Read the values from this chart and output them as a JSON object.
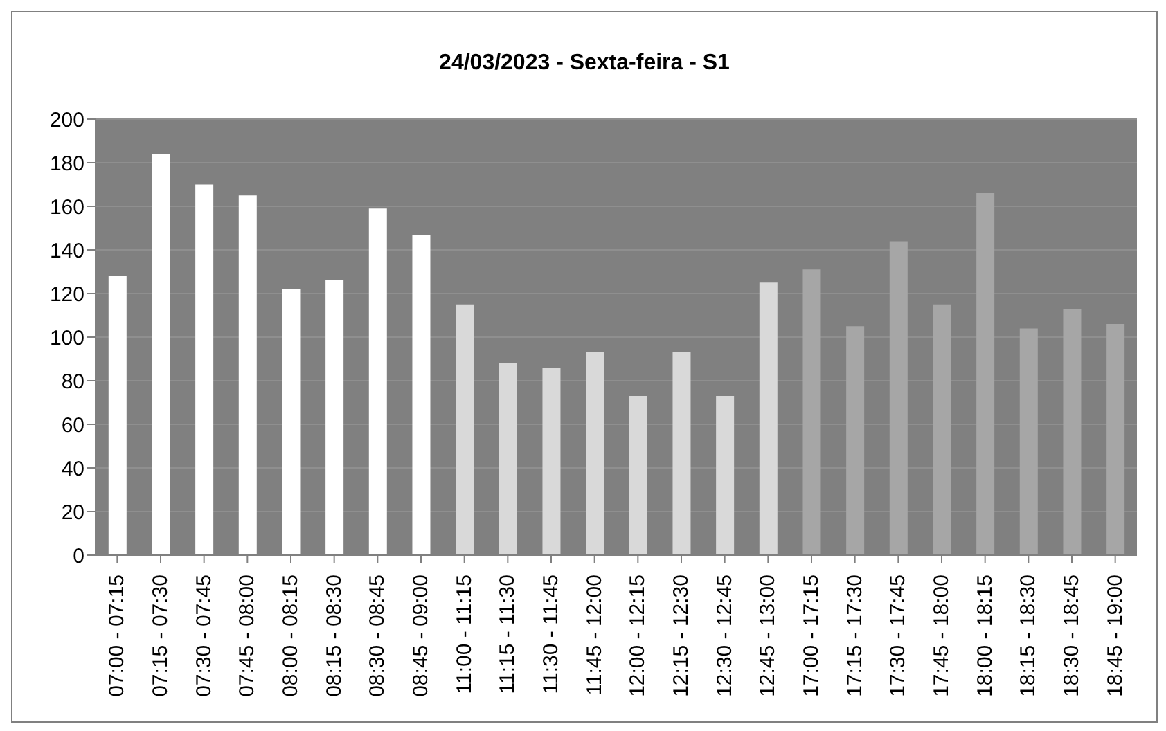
{
  "chart_data": {
    "type": "bar",
    "title": "24/03/2023 - Sexta-feira - S1",
    "categories": [
      "07:00 - 07:15",
      "07:15 - 07:30",
      "07:30 - 07:45",
      "07:45 - 08:00",
      "08:00 - 08:15",
      "08:15 - 08:30",
      "08:30 - 08:45",
      "08:45 - 09:00",
      "11:00 - 11:15",
      "11:15 - 11:30",
      "11:30 - 11:45",
      "11:45 - 12:00",
      "12:00 - 12:15",
      "12:15 - 12:30",
      "12:30 - 12:45",
      "12:45 - 13:00",
      "17:00 - 17:15",
      "17:15 - 17:30",
      "17:30 - 17:45",
      "17:45 - 18:00",
      "18:00 - 18:15",
      "18:15 - 18:30",
      "18:30 - 18:45",
      "18:45 - 19:00"
    ],
    "values": [
      128,
      184,
      170,
      165,
      122,
      126,
      159,
      147,
      115,
      88,
      86,
      93,
      73,
      93,
      73,
      125,
      131,
      105,
      144,
      115,
      166,
      104,
      113,
      106
    ],
    "colors": [
      "#ffffff",
      "#ffffff",
      "#ffffff",
      "#ffffff",
      "#ffffff",
      "#ffffff",
      "#ffffff",
      "#ffffff",
      "#d9d9d9",
      "#d9d9d9",
      "#d9d9d9",
      "#d9d9d9",
      "#d9d9d9",
      "#d9d9d9",
      "#d9d9d9",
      "#d9d9d9",
      "#a6a6a6",
      "#a6a6a6",
      "#a6a6a6",
      "#a6a6a6",
      "#a6a6a6",
      "#a6a6a6",
      "#a6a6a6",
      "#a6a6a6"
    ],
    "ylim": [
      0,
      200
    ],
    "yticks": [
      0,
      20,
      40,
      60,
      80,
      100,
      120,
      140,
      160,
      180,
      200
    ],
    "grid": "y"
  }
}
